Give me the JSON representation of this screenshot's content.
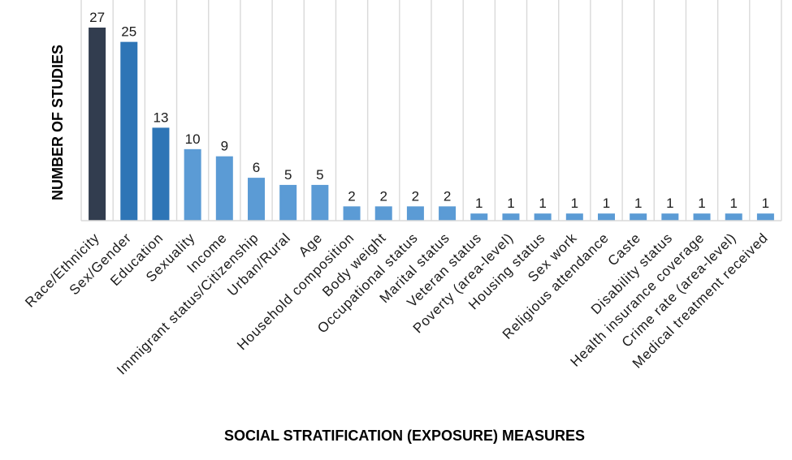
{
  "chart_data": {
    "type": "bar",
    "title": "",
    "xlabel": "SOCIAL STRATIFICATION (EXPOSURE) MEASURES",
    "ylabel": "NUMBER OF STUDIES",
    "ylim": [
      0,
      27
    ],
    "grid": true,
    "categories": [
      "Race/Ethnicity",
      "Sex/Gender",
      "Education",
      "Sexuality",
      "Income",
      "Immigrant status/Citizenship",
      "Urban/Rural",
      "Age",
      "Household composition",
      "Body weight",
      "Occupational status",
      "Marital status",
      "Veteran status",
      "Poverty (area-level)",
      "Housing status",
      "Sex work",
      "Religious attendance",
      "Caste",
      "Disability status",
      "Health insurance coverage",
      "Crime rate (area-level)",
      "Medical treatment received"
    ],
    "values": [
      27,
      25,
      13,
      10,
      9,
      6,
      5,
      5,
      2,
      2,
      2,
      2,
      1,
      1,
      1,
      1,
      1,
      1,
      1,
      1,
      1,
      1
    ],
    "value_labels": [
      "27",
      "25",
      "13",
      "10",
      "9",
      "6",
      "5",
      "5",
      "2",
      "2",
      "2",
      "2",
      "1",
      "1",
      "1",
      "1",
      "1",
      "1",
      "1",
      "1",
      "1",
      "1"
    ],
    "colors": {
      "top": "#323d4f",
      "high": "#2e75b6",
      "other": "#5b9bd5"
    },
    "color_groups": [
      "top",
      "high",
      "high",
      "other",
      "other",
      "other",
      "other",
      "other",
      "other",
      "other",
      "other",
      "other",
      "other",
      "other",
      "other",
      "other",
      "other",
      "other",
      "other",
      "other",
      "other",
      "other"
    ]
  }
}
